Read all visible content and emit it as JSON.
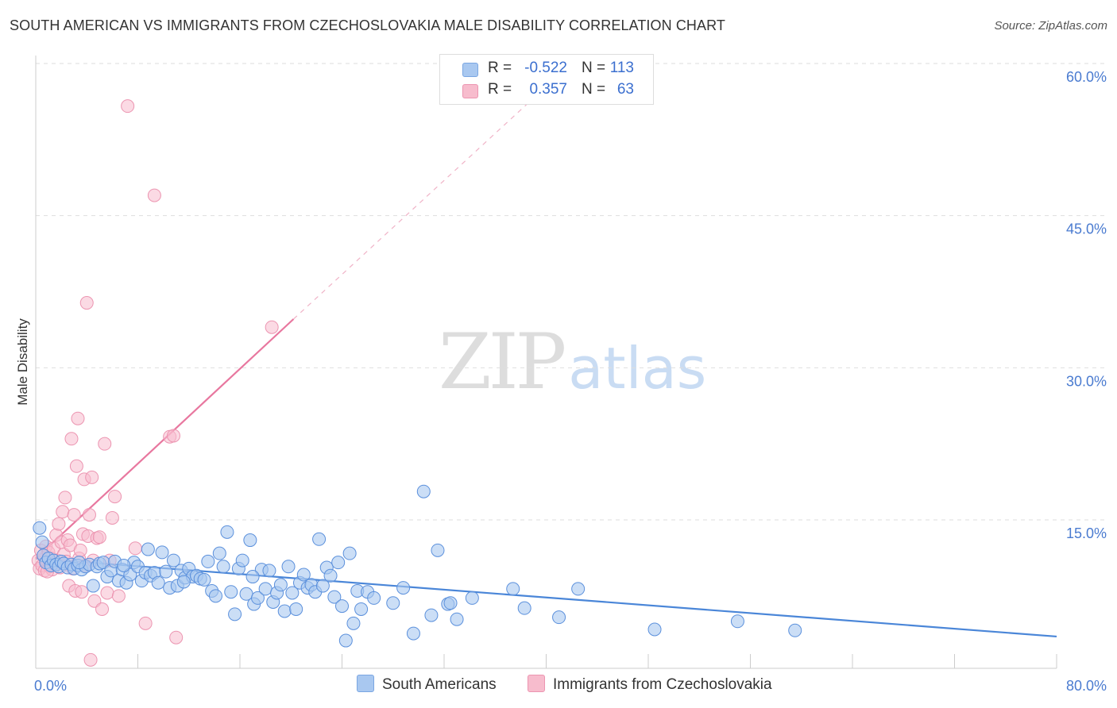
{
  "header": {
    "title": "SOUTH AMERICAN VS IMMIGRANTS FROM CZECHOSLOVAKIA MALE DISABILITY CORRELATION CHART",
    "source": "Source: ZipAtlas.com"
  },
  "watermark": {
    "zip": "ZIP",
    "atlas": "atlas"
  },
  "legend_top": {
    "rows": [
      {
        "r_label": "R =",
        "r_value": "-0.522",
        "n_label": "N =",
        "n_value": "113",
        "color": "#a9c8f0"
      },
      {
        "r_label": "R =",
        "r_value": "0.357",
        "n_label": "N =",
        "n_value": "63",
        "color": "#f7bccd"
      }
    ]
  },
  "legend_bottom": {
    "items": [
      {
        "label": "South Americans",
        "color": "#a9c8f0"
      },
      {
        "label": "Immigrants from Czechoslovakia",
        "color": "#f7bccd"
      }
    ]
  },
  "chart_data": {
    "type": "scatter",
    "title": "SOUTH AMERICAN VS IMMIGRANTS FROM CZECHOSLOVAKIA MALE DISABILITY CORRELATION CHART",
    "xlabel": "",
    "ylabel": "Male Disability",
    "xlim": [
      0,
      80
    ],
    "ylim": [
      0,
      62
    ],
    "x_tick_labels": [
      "0.0%",
      "80.0%"
    ],
    "y_ticks": [
      15,
      30,
      45,
      60
    ],
    "y_tick_labels": [
      "15.0%",
      "30.0%",
      "45.0%",
      "60.0%"
    ],
    "grid": true,
    "colors": {
      "blue": "#4a86d8",
      "pink": "#e8779f",
      "blue_fill": "#a9c8f0",
      "pink_fill": "#f7bccd",
      "tick_text": "#4a7bd0"
    },
    "series": [
      {
        "name": "South Americans",
        "color": "#4a86d8",
        "trend": {
          "x": [
            0,
            80
          ],
          "y": [
            11.2,
            3.5
          ]
        },
        "points": [
          [
            0.3,
            14.2
          ],
          [
            0.5,
            12.8
          ],
          [
            0.6,
            11.5
          ],
          [
            0.8,
            10.8
          ],
          [
            1.0,
            11.2
          ],
          [
            1.2,
            10.5
          ],
          [
            1.4,
            11.0
          ],
          [
            1.6,
            10.6
          ],
          [
            1.8,
            10.4
          ],
          [
            2.0,
            10.9
          ],
          [
            2.2,
            10.7
          ],
          [
            2.5,
            10.3
          ],
          [
            2.8,
            10.6
          ],
          [
            3.0,
            10.2
          ],
          [
            3.3,
            10.5
          ],
          [
            3.6,
            10.1
          ],
          [
            3.9,
            10.4
          ],
          [
            4.2,
            10.6
          ],
          [
            4.5,
            8.5
          ],
          [
            4.8,
            10.4
          ],
          [
            5.0,
            10.7
          ],
          [
            5.3,
            10.8
          ],
          [
            5.6,
            9.4
          ],
          [
            5.9,
            10.0
          ],
          [
            6.2,
            10.9
          ],
          [
            6.5,
            9.0
          ],
          [
            6.8,
            10.1
          ],
          [
            7.1,
            8.8
          ],
          [
            7.4,
            9.6
          ],
          [
            7.7,
            10.8
          ],
          [
            8.0,
            10.4
          ],
          [
            8.3,
            9.0
          ],
          [
            8.6,
            9.8
          ],
          [
            8.8,
            12.1
          ],
          [
            9.0,
            9.5
          ],
          [
            9.3,
            9.8
          ],
          [
            9.6,
            8.8
          ],
          [
            9.9,
            11.8
          ],
          [
            10.2,
            9.9
          ],
          [
            10.5,
            8.3
          ],
          [
            10.8,
            11.0
          ],
          [
            11.1,
            8.5
          ],
          [
            11.4,
            10.0
          ],
          [
            11.7,
            9.3
          ],
          [
            12.0,
            10.2
          ],
          [
            12.3,
            9.4
          ],
          [
            12.6,
            9.5
          ],
          [
            12.9,
            9.2
          ],
          [
            13.2,
            9.1
          ],
          [
            13.5,
            10.9
          ],
          [
            13.8,
            8.0
          ],
          [
            14.1,
            7.5
          ],
          [
            14.4,
            11.7
          ],
          [
            14.7,
            10.4
          ],
          [
            15.0,
            13.8
          ],
          [
            15.3,
            7.9
          ],
          [
            15.6,
            5.7
          ],
          [
            15.9,
            10.2
          ],
          [
            16.2,
            11.0
          ],
          [
            16.5,
            7.7
          ],
          [
            16.8,
            13.0
          ],
          [
            17.1,
            6.7
          ],
          [
            17.4,
            7.3
          ],
          [
            17.7,
            10.1
          ],
          [
            18.0,
            8.2
          ],
          [
            18.3,
            10.0
          ],
          [
            18.6,
            6.9
          ],
          [
            18.9,
            7.8
          ],
          [
            19.2,
            8.6
          ],
          [
            19.5,
            6.0
          ],
          [
            19.8,
            10.4
          ],
          [
            20.1,
            7.8
          ],
          [
            20.4,
            6.2
          ],
          [
            20.7,
            8.8
          ],
          [
            21.0,
            9.6
          ],
          [
            21.3,
            8.3
          ],
          [
            21.6,
            8.6
          ],
          [
            21.9,
            7.9
          ],
          [
            22.2,
            13.1
          ],
          [
            22.5,
            8.5
          ],
          [
            22.8,
            10.3
          ],
          [
            23.1,
            9.5
          ],
          [
            23.4,
            7.4
          ],
          [
            23.7,
            10.8
          ],
          [
            24.0,
            6.5
          ],
          [
            24.3,
            3.1
          ],
          [
            24.6,
            11.7
          ],
          [
            24.9,
            4.8
          ],
          [
            25.2,
            8.0
          ],
          [
            25.5,
            6.2
          ],
          [
            26.0,
            7.9
          ],
          [
            26.5,
            7.3
          ],
          [
            28.0,
            6.8
          ],
          [
            28.8,
            8.3
          ],
          [
            29.6,
            3.8
          ],
          [
            30.4,
            17.8
          ],
          [
            31.0,
            5.6
          ],
          [
            31.5,
            12.0
          ],
          [
            32.3,
            6.7
          ],
          [
            32.5,
            6.8
          ],
          [
            33.0,
            5.2
          ],
          [
            34.2,
            7.3
          ],
          [
            37.4,
            8.2
          ],
          [
            38.3,
            6.3
          ],
          [
            41.0,
            5.4
          ],
          [
            42.5,
            8.2
          ],
          [
            48.5,
            4.2
          ],
          [
            55.0,
            5.0
          ],
          [
            59.5,
            4.1
          ],
          [
            3.4,
            10.8
          ],
          [
            6.9,
            10.5
          ],
          [
            11.6,
            8.9
          ],
          [
            17.0,
            9.4
          ]
        ]
      },
      {
        "name": "Immigrants from Czechoslovakia",
        "color": "#e8779f",
        "trend": {
          "x": [
            0,
            20.2
          ],
          "y": [
            11.2,
            34.8
          ]
        },
        "trend_extension": {
          "x": [
            20.2,
            38.5
          ],
          "y": [
            34.8,
            56.0
          ]
        },
        "points": [
          [
            0.2,
            11.0
          ],
          [
            0.3,
            10.2
          ],
          [
            0.4,
            12.0
          ],
          [
            0.5,
            10.5
          ],
          [
            0.6,
            11.5
          ],
          [
            0.7,
            10.0
          ],
          [
            0.8,
            12.4
          ],
          [
            0.9,
            10.8
          ],
          [
            1.0,
            11.8
          ],
          [
            1.1,
            10.4
          ],
          [
            1.2,
            11.2
          ],
          [
            1.3,
            10.1
          ],
          [
            1.4,
            12.2
          ],
          [
            1.5,
            10.6
          ],
          [
            1.6,
            13.5
          ],
          [
            1.7,
            11.0
          ],
          [
            1.8,
            14.6
          ],
          [
            1.9,
            10.3
          ],
          [
            2.0,
            12.8
          ],
          [
            2.1,
            15.8
          ],
          [
            2.2,
            11.6
          ],
          [
            2.3,
            17.2
          ],
          [
            2.4,
            10.9
          ],
          [
            2.5,
            13.0
          ],
          [
            2.6,
            8.5
          ],
          [
            2.7,
            12.5
          ],
          [
            2.8,
            23.0
          ],
          [
            2.9,
            10.2
          ],
          [
            3.0,
            15.5
          ],
          [
            3.1,
            8.0
          ],
          [
            3.2,
            20.3
          ],
          [
            3.3,
            25.0
          ],
          [
            3.4,
            11.2
          ],
          [
            3.5,
            12.0
          ],
          [
            3.6,
            7.9
          ],
          [
            3.7,
            13.6
          ],
          [
            3.8,
            19.0
          ],
          [
            3.9,
            10.5
          ],
          [
            4.0,
            36.4
          ],
          [
            4.1,
            13.4
          ],
          [
            4.2,
            15.5
          ],
          [
            4.3,
            1.2
          ],
          [
            4.4,
            19.2
          ],
          [
            4.5,
            11.0
          ],
          [
            4.6,
            7.0
          ],
          [
            4.8,
            13.2
          ],
          [
            5.0,
            13.3
          ],
          [
            5.2,
            6.2
          ],
          [
            5.4,
            22.5
          ],
          [
            5.6,
            7.8
          ],
          [
            5.8,
            11.0
          ],
          [
            6.0,
            15.2
          ],
          [
            6.2,
            17.3
          ],
          [
            6.5,
            7.5
          ],
          [
            7.2,
            55.8
          ],
          [
            7.8,
            12.2
          ],
          [
            8.6,
            4.8
          ],
          [
            9.3,
            47.0
          ],
          [
            10.5,
            23.2
          ],
          [
            10.8,
            23.3
          ],
          [
            11.0,
            3.4
          ],
          [
            18.5,
            34.0
          ],
          [
            0.9,
            9.9
          ]
        ]
      }
    ]
  }
}
